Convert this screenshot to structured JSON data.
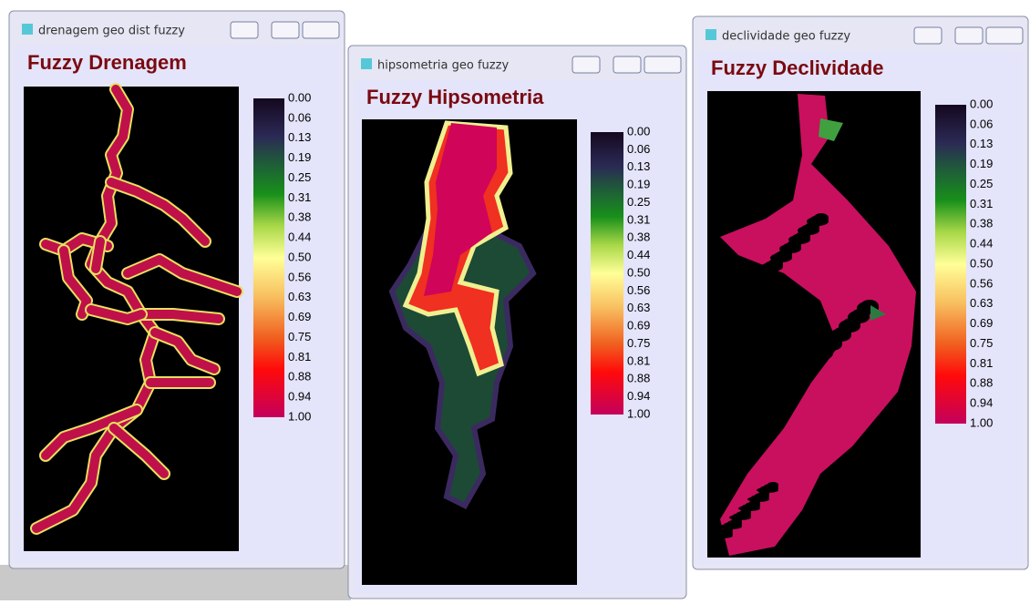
{
  "windows": [
    {
      "title": "drenagem geo dist fuzzy",
      "heading": "Fuzzy Drenagem",
      "legend_labels": [
        "0.00",
        "0.06",
        "0.13",
        "0.19",
        "0.25",
        "0.31",
        "0.38",
        "0.44",
        "0.50",
        "0.56",
        "0.63",
        "0.69",
        "0.75",
        "0.81",
        "0.88",
        "0.94",
        "1.00"
      ]
    },
    {
      "title": "hipsometria geo fuzzy",
      "heading": "Fuzzy Hipsometria",
      "legend_labels": [
        "0.00",
        "0.06",
        "0.13",
        "0.19",
        "0.25",
        "0.31",
        "0.38",
        "0.44",
        "0.50",
        "0.56",
        "0.63",
        "0.69",
        "0.75",
        "0.81",
        "0.88",
        "0.94",
        "1.00"
      ]
    },
    {
      "title": "declividade geo fuzzy",
      "heading": "Fuzzy Declividade",
      "legend_labels": [
        "0.00",
        "0.06",
        "0.13",
        "0.19",
        "0.25",
        "0.31",
        "0.38",
        "0.44",
        "0.50",
        "0.56",
        "0.63",
        "0.69",
        "0.75",
        "0.81",
        "0.88",
        "0.94",
        "1.00"
      ]
    }
  ]
}
